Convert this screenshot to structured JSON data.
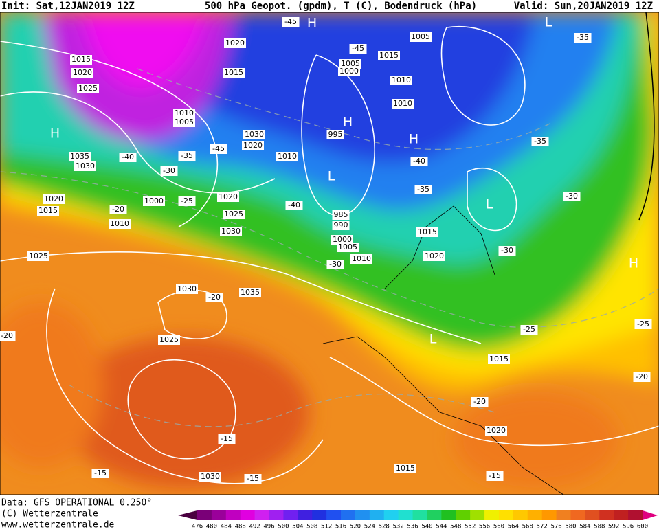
{
  "header": {
    "init": "Init: Sat,12JAN2019 12Z",
    "title": "500 hPa Geopot. (gpdm), T (C), Bodendruck (hPa)",
    "valid": "Valid: Sun,20JAN2019 12Z"
  },
  "footer": {
    "data": "Data: GFS OPERATIONAL 0.250°",
    "copyright": "(C) Wetterzentrale",
    "url": "www.wetterzentrale.de"
  },
  "colorbar": {
    "labels": [
      476,
      480,
      484,
      488,
      492,
      496,
      500,
      504,
      508,
      512,
      516,
      520,
      524,
      528,
      532,
      536,
      540,
      544,
      548,
      552,
      556,
      560,
      564,
      568,
      572,
      576,
      580,
      584,
      588,
      592,
      596,
      600
    ],
    "colors": [
      "#4a0040",
      "#7a0078",
      "#9a009a",
      "#c000c0",
      "#e000e0",
      "#d020f0",
      "#a020f0",
      "#7020f0",
      "#4020e0",
      "#2030e0",
      "#2050f0",
      "#2070f0",
      "#2090f0",
      "#20b0f0",
      "#20d0f0",
      "#20e0d0",
      "#20e0a0",
      "#20d060",
      "#20c020",
      "#60d000",
      "#a0e000",
      "#f0f000",
      "#ffe000",
      "#ffc800",
      "#ffb000",
      "#ff9800",
      "#f08020",
      "#f06820",
      "#e05020",
      "#d03020",
      "#c02020",
      "#b01030",
      "#e00080"
    ]
  },
  "map": {
    "isobar_labels": [
      "1015",
      "1020",
      "1025",
      "1035",
      "1030",
      "1020",
      "1015",
      "1010",
      "1000",
      "1020",
      "1015",
      "1010",
      "1005",
      "1030",
      "1020",
      "1010",
      "1020",
      "1025",
      "1030",
      "1025",
      "1030",
      "1035",
      "1025",
      "1030",
      "1005",
      "1015",
      "1005",
      "1000",
      "1010",
      "1010",
      "995",
      "985",
      "990",
      "1000",
      "1005",
      "1010",
      "1015",
      "1020",
      "1015",
      "1020",
      "1015"
    ],
    "temperature_labels": [
      "-45",
      "-45",
      "-40",
      "-30",
      "-35",
      "-45",
      "-25",
      "-20",
      "-40",
      "-30",
      "-40",
      "-35",
      "-35",
      "-35",
      "-30",
      "-30",
      "-25",
      "-25",
      "-20",
      "-20",
      "-15",
      "-20",
      "-20",
      "-15",
      "-15",
      "-15"
    ],
    "pressure_centers": [
      "H",
      "L",
      "H",
      "H",
      "H",
      "L",
      "L",
      "H",
      "L"
    ]
  }
}
